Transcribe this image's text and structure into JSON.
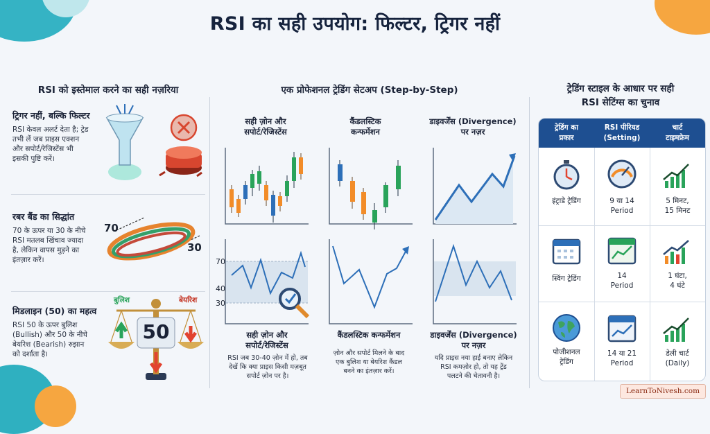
{
  "title": "RSI का सही उपयोग: फिल्टर, ट्रिगर नहीं",
  "colors": {
    "navy": "#1e4f91",
    "green": "#29a35a",
    "red": "#e2432f",
    "orange": "#f28c28",
    "line": "#2d6fb8"
  },
  "left": {
    "heading": "RSI को इस्तेमाल करने का सही नज़रिया",
    "items": [
      {
        "title": "ट्रिगर नहीं, बल्कि फिल्टर",
        "lines": [
          "RSI केवल अलर्ट देता है; ट्रेड",
          "तभी लें जब प्राइस एक्शन",
          "और सपोर्ट/रेजिस्टेंस भी",
          "इसकी पुष्टि करें।"
        ],
        "icon": "funnel-icon"
      },
      {
        "title": "रबर बैंड का सिद्धांत",
        "lines": [
          "70 के ऊपर या 30 के नीचे",
          "RSI मतलब खिंचाव ज्यादा",
          "है, लेकिन वापस मुड़ने का",
          "इंतज़ार करें।"
        ],
        "icon": "rubber-band-icon",
        "label_70": "70",
        "label_30": "30"
      },
      {
        "title": "मिडलाइन (50) का महत्व",
        "lines": [
          "RSI 50 के ऊपर बुलिश",
          "(Bullish) और 50 के नीचे",
          "बेयरिश (Bearish) रुझान",
          "को दर्शाता है।"
        ],
        "icon": "scale-icon",
        "bull": "बुलिश",
        "bear": "बेयरिश",
        "mid": "50"
      }
    ]
  },
  "middle": {
    "heading": "एक प्रोफेशनल ट्रेडिंग सेटअप (Step-by-Step)",
    "top_titles": [
      [
        "सही ज़ोन और",
        "सपोर्ट/रेजिस्टेंस"
      ],
      [
        "कैंडलस्टिक",
        "कन्फर्मेशन"
      ],
      [
        "डाइवर्जेंस (Divergence)",
        "पर नज़र"
      ]
    ],
    "rsi_levels": [
      "70",
      "40",
      "30"
    ],
    "steps": [
      {
        "title": [
          "सही ज़ोन और",
          "सपोर्ट/रेजिस्टेंस"
        ],
        "lines": [
          "RSI जब 30-40 ज़ोन में हो, तब",
          "देखें कि क्या प्राइस किसी मज़बूत",
          "सपोर्ट ज़ोन पर है।"
        ]
      },
      {
        "title": [
          "कैंडलस्टिक कन्फर्मेशन"
        ],
        "lines": [
          "ज़ोन और सपोर्ट मिलने के बाद",
          "एक बुलिश या बेयरिश कैंडल",
          "बनने का इंतज़ार करें।"
        ]
      },
      {
        "title": [
          "डाइवर्जेंस (Divergence)",
          "पर नज़र"
        ],
        "lines": [
          "यदि प्राइस नया हाई बनाए लेकिन",
          "RSI कमज़ोर हो, तो यह ट्रेंड",
          "पलटने की चेतावनी है।"
        ]
      }
    ]
  },
  "right": {
    "heading": [
      "ट्रेडिंग स्टाइल के आधार पर सही",
      "RSI सेटिंग्स का चुनाव"
    ],
    "columns": [
      [
        "ट्रेडिंग का",
        "प्रकार"
      ],
      [
        "RSI पीरियड",
        "(Setting)"
      ],
      [
        "चार्ट",
        "टाइमफ्रेम"
      ]
    ],
    "rows": [
      {
        "type": [
          "इंट्राडे ट्रेडिंग"
        ],
        "period": [
          "9 या 14",
          "Period"
        ],
        "frame": [
          "5 मिनट,",
          "15 मिनट"
        ],
        "icon": "stopwatch-icon"
      },
      {
        "type": [
          "स्विंग ट्रेडिंग"
        ],
        "period": [
          "14",
          "Period"
        ],
        "frame": [
          "1 घंटा,",
          "4 घंटे"
        ],
        "icon": "calendar-icon"
      },
      {
        "type": [
          "पोजीशनल",
          "ट्रेडिंग"
        ],
        "period": [
          "14 या 21",
          "Period"
        ],
        "frame": [
          "डेली चार्ट",
          "(Daily)"
        ],
        "icon": "globe-icon"
      }
    ]
  },
  "watermark": "LearnToNivesh.com"
}
